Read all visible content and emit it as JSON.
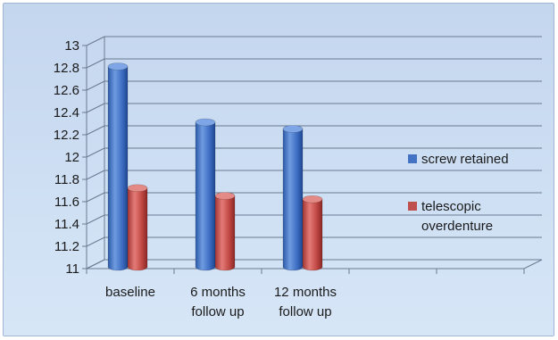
{
  "chart_data": {
    "type": "bar",
    "categories": [
      [
        "baseline"
      ],
      [
        "6 months",
        "follow up"
      ],
      [
        "12 months",
        "follow up"
      ]
    ],
    "series": [
      {
        "name": "screw retained",
        "values": [
          12.86,
          12.36,
          12.3
        ],
        "color": "#4472c4"
      },
      {
        "name": "telescopic overdenture",
        "legend_lines": [
          "telescopic",
          "overdenture"
        ],
        "values": [
          11.77,
          11.7,
          11.67
        ],
        "color": "#c0504d"
      }
    ],
    "yticks": [
      "11",
      "11.2",
      "11.4",
      "11.6",
      "11.8",
      "12",
      "12.2",
      "12.4",
      "12.6",
      "12.8",
      "13"
    ],
    "ylim": [
      11,
      13
    ],
    "grid": true,
    "legend_position": "right",
    "style": "3d-cylinder"
  }
}
